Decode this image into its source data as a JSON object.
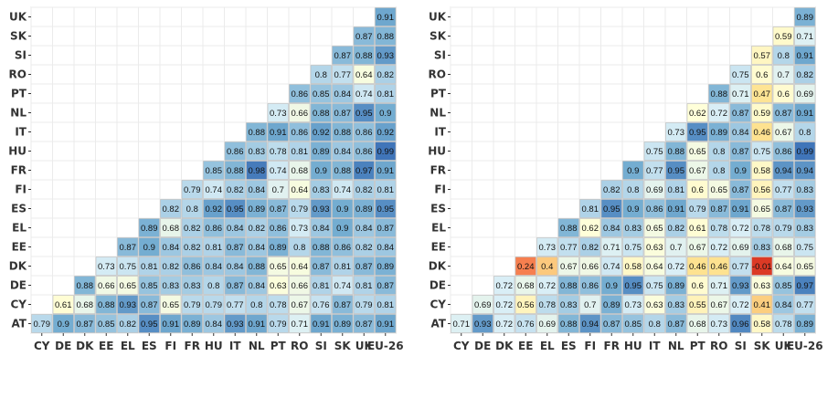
{
  "chart_data": [
    {
      "type": "heatmap",
      "rows": [
        "UK",
        "SK",
        "SI",
        "RO",
        "PT",
        "NL",
        "IT",
        "HU",
        "FR",
        "FI",
        "ES",
        "EL",
        "EE",
        "DK",
        "DE",
        "CY",
        "AT"
      ],
      "columns": [
        "CY",
        "DE",
        "DK",
        "EE",
        "EL",
        "ES",
        "FI",
        "FR",
        "HU",
        "IT",
        "NL",
        "PT",
        "RO",
        "SI",
        "SK",
        "UK",
        "EU-26"
      ],
      "values": [
        [
          null,
          null,
          null,
          null,
          null,
          null,
          null,
          null,
          null,
          null,
          null,
          null,
          null,
          null,
          null,
          null,
          0.91
        ],
        [
          null,
          null,
          null,
          null,
          null,
          null,
          null,
          null,
          null,
          null,
          null,
          null,
          null,
          null,
          null,
          0.87,
          0.88
        ],
        [
          null,
          null,
          null,
          null,
          null,
          null,
          null,
          null,
          null,
          null,
          null,
          null,
          null,
          null,
          0.87,
          0.88,
          0.93
        ],
        [
          null,
          null,
          null,
          null,
          null,
          null,
          null,
          null,
          null,
          null,
          null,
          null,
          null,
          0.8,
          0.77,
          0.64,
          0.82
        ],
        [
          null,
          null,
          null,
          null,
          null,
          null,
          null,
          null,
          null,
          null,
          null,
          null,
          0.86,
          0.85,
          0.84,
          0.74,
          0.81
        ],
        [
          null,
          null,
          null,
          null,
          null,
          null,
          null,
          null,
          null,
          null,
          null,
          0.73,
          0.66,
          0.88,
          0.87,
          0.95,
          0.9
        ],
        [
          null,
          null,
          null,
          null,
          null,
          null,
          null,
          null,
          null,
          null,
          0.88,
          0.91,
          0.86,
          0.92,
          0.88,
          0.86,
          0.92
        ],
        [
          null,
          null,
          null,
          null,
          null,
          null,
          null,
          null,
          null,
          0.86,
          0.83,
          0.78,
          0.81,
          0.89,
          0.84,
          0.86,
          0.99
        ],
        [
          null,
          null,
          null,
          null,
          null,
          null,
          null,
          null,
          0.85,
          0.88,
          0.98,
          0.74,
          0.68,
          0.9,
          0.88,
          0.97,
          0.91
        ],
        [
          null,
          null,
          null,
          null,
          null,
          null,
          null,
          0.79,
          0.74,
          0.82,
          0.84,
          0.7,
          0.64,
          0.83,
          0.74,
          0.82,
          0.81
        ],
        [
          null,
          null,
          null,
          null,
          null,
          null,
          0.82,
          0.8,
          0.92,
          0.95,
          0.89,
          0.87,
          0.79,
          0.93,
          0.9,
          0.89,
          0.95
        ],
        [
          null,
          null,
          null,
          null,
          null,
          0.89,
          0.68,
          0.82,
          0.86,
          0.84,
          0.82,
          0.86,
          0.73,
          0.84,
          0.9,
          0.84,
          0.87
        ],
        [
          null,
          null,
          null,
          null,
          0.87,
          0.9,
          0.84,
          0.82,
          0.81,
          0.87,
          0.84,
          0.89,
          0.8,
          0.88,
          0.86,
          0.82,
          0.84
        ],
        [
          null,
          null,
          null,
          0.73,
          0.75,
          0.81,
          0.82,
          0.86,
          0.84,
          0.84,
          0.88,
          0.65,
          0.64,
          0.87,
          0.81,
          0.87,
          0.89
        ],
        [
          null,
          null,
          0.88,
          0.66,
          0.65,
          0.85,
          0.83,
          0.83,
          0.8,
          0.87,
          0.84,
          0.63,
          0.66,
          0.81,
          0.74,
          0.81,
          0.87
        ],
        [
          null,
          0.61,
          0.68,
          0.88,
          0.93,
          0.87,
          0.65,
          0.79,
          0.79,
          0.77,
          0.8,
          0.78,
          0.67,
          0.76,
          0.87,
          0.79,
          0.81
        ],
        [
          0.79,
          0.9,
          0.87,
          0.85,
          0.82,
          0.95,
          0.91,
          0.89,
          0.84,
          0.93,
          0.91,
          0.79,
          0.71,
          0.91,
          0.89,
          0.87,
          0.91
        ]
      ]
    },
    {
      "type": "heatmap",
      "rows": [
        "UK",
        "SK",
        "SI",
        "RO",
        "PT",
        "NL",
        "IT",
        "HU",
        "FR",
        "FI",
        "ES",
        "EL",
        "EE",
        "DK",
        "DE",
        "CY",
        "AT"
      ],
      "columns": [
        "CY",
        "DE",
        "DK",
        "EE",
        "EL",
        "ES",
        "FI",
        "FR",
        "HU",
        "IT",
        "NL",
        "PT",
        "RO",
        "SI",
        "SK",
        "UK",
        "EU-26"
      ],
      "values": [
        [
          null,
          null,
          null,
          null,
          null,
          null,
          null,
          null,
          null,
          null,
          null,
          null,
          null,
          null,
          null,
          null,
          0.89
        ],
        [
          null,
          null,
          null,
          null,
          null,
          null,
          null,
          null,
          null,
          null,
          null,
          null,
          null,
          null,
          null,
          0.59,
          0.71
        ],
        [
          null,
          null,
          null,
          null,
          null,
          null,
          null,
          null,
          null,
          null,
          null,
          null,
          null,
          null,
          0.57,
          0.8,
          0.91
        ],
        [
          null,
          null,
          null,
          null,
          null,
          null,
          null,
          null,
          null,
          null,
          null,
          null,
          null,
          0.75,
          0.6,
          0.7,
          0.82
        ],
        [
          null,
          null,
          null,
          null,
          null,
          null,
          null,
          null,
          null,
          null,
          null,
          null,
          0.88,
          0.71,
          0.47,
          0.6,
          0.69
        ],
        [
          null,
          null,
          null,
          null,
          null,
          null,
          null,
          null,
          null,
          null,
          null,
          0.62,
          0.72,
          0.87,
          0.59,
          0.87,
          0.91
        ],
        [
          null,
          null,
          null,
          null,
          null,
          null,
          null,
          null,
          null,
          null,
          0.73,
          0.95,
          0.89,
          0.84,
          0.46,
          0.67,
          0.8
        ],
        [
          null,
          null,
          null,
          null,
          null,
          null,
          null,
          null,
          null,
          0.75,
          0.88,
          0.65,
          0.8,
          0.87,
          0.75,
          0.86,
          0.99
        ],
        [
          null,
          null,
          null,
          null,
          null,
          null,
          null,
          null,
          0.9,
          0.77,
          0.95,
          0.67,
          0.8,
          0.9,
          0.58,
          0.94,
          0.94
        ],
        [
          null,
          null,
          null,
          null,
          null,
          null,
          null,
          0.82,
          0.8,
          0.69,
          0.81,
          0.6,
          0.65,
          0.87,
          0.56,
          0.77,
          0.83
        ],
        [
          null,
          null,
          null,
          null,
          null,
          null,
          0.81,
          0.95,
          0.9,
          0.86,
          0.91,
          0.79,
          0.87,
          0.91,
          0.65,
          0.87,
          0.93
        ],
        [
          null,
          null,
          null,
          null,
          null,
          0.88,
          0.62,
          0.84,
          0.83,
          0.65,
          0.82,
          0.61,
          0.78,
          0.72,
          0.78,
          0.79,
          0.83
        ],
        [
          null,
          null,
          null,
          null,
          0.73,
          0.77,
          0.82,
          0.71,
          0.75,
          0.63,
          0.7,
          0.67,
          0.72,
          0.69,
          0.83,
          0.68,
          0.75
        ],
        [
          null,
          null,
          null,
          0.24,
          0.4,
          0.67,
          0.66,
          0.74,
          0.58,
          0.64,
          0.72,
          0.46,
          0.46,
          0.77,
          -0.01,
          0.64,
          0.65
        ],
        [
          null,
          null,
          0.72,
          0.68,
          0.72,
          0.88,
          0.86,
          0.9,
          0.95,
          0.75,
          0.89,
          0.6,
          0.71,
          0.93,
          0.63,
          0.85,
          0.97
        ],
        [
          null,
          0.69,
          0.72,
          0.56,
          0.78,
          0.83,
          0.7,
          0.89,
          0.73,
          0.63,
          0.83,
          0.55,
          0.67,
          0.72,
          0.41,
          0.84,
          0.77
        ],
        [
          0.71,
          0.93,
          0.72,
          0.76,
          0.69,
          0.88,
          0.94,
          0.87,
          0.85,
          0.8,
          0.87,
          0.68,
          0.73,
          0.96,
          0.58,
          0.78,
          0.89
        ]
      ]
    }
  ]
}
